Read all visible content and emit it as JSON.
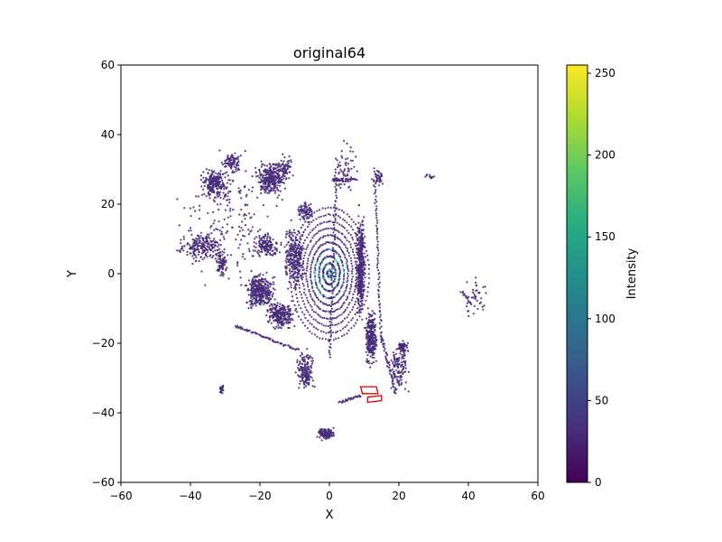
{
  "chart_data": {
    "type": "scatter",
    "title": "original64",
    "xlabel": "X",
    "ylabel": "Y",
    "xlim": [
      -60,
      60
    ],
    "ylim": [
      -60,
      60
    ],
    "xticks": [
      -60,
      -40,
      -20,
      0,
      20,
      40,
      60
    ],
    "yticks": [
      -60,
      -40,
      -20,
      0,
      20,
      40,
      60
    ],
    "grid": false,
    "colorbar": {
      "label": "Intensity",
      "colormap": "viridis",
      "range": [
        0,
        255
      ],
      "ticks": [
        0,
        50,
        100,
        150,
        200,
        250
      ]
    },
    "point_color": "#472c7a",
    "highlight_color": "#46d0c0",
    "box_color": "#e00000",
    "clusters": [
      {
        "name": "far-left-a",
        "cx": -33,
        "cy": 26,
        "rx": 5,
        "ry": 5,
        "n": 220
      },
      {
        "name": "far-left-b",
        "cx": -28,
        "cy": 32,
        "rx": 3,
        "ry": 4,
        "n": 80
      },
      {
        "name": "left-upper",
        "cx": -17,
        "cy": 27,
        "rx": 5,
        "ry": 6,
        "n": 260
      },
      {
        "name": "left-upper-2",
        "cx": -13,
        "cy": 30,
        "rx": 3,
        "ry": 5,
        "n": 80
      },
      {
        "name": "left-mid",
        "cx": -37,
        "cy": 8,
        "rx": 8,
        "ry": 5,
        "n": 200
      },
      {
        "name": "left-mid-2",
        "cx": -31,
        "cy": 3,
        "rx": 2,
        "ry": 4,
        "n": 70
      },
      {
        "name": "left-mid-3",
        "cx": -18,
        "cy": 8,
        "rx": 5,
        "ry": 4,
        "n": 150
      },
      {
        "name": "left-lower",
        "cx": -20,
        "cy": -5,
        "rx": 5,
        "ry": 6,
        "n": 350
      },
      {
        "name": "left-lower-2",
        "cx": -14,
        "cy": -12,
        "rx": 5,
        "ry": 5,
        "n": 240
      },
      {
        "name": "inner-left",
        "cx": -10,
        "cy": 5,
        "rx": 4,
        "ry": 12,
        "n": 260
      },
      {
        "name": "inner-left-2",
        "cx": -7,
        "cy": 18,
        "rx": 3,
        "ry": 4,
        "n": 80
      },
      {
        "name": "inner-lower",
        "cx": -7,
        "cy": -28,
        "rx": 3,
        "ry": 7,
        "n": 160
      },
      {
        "name": "bottom",
        "cx": -1,
        "cy": -46,
        "rx": 3,
        "ry": 2,
        "n": 120
      },
      {
        "name": "bottom-left",
        "cx": -31,
        "cy": -33,
        "rx": 1,
        "ry": 2,
        "n": 25
      },
      {
        "name": "road-right",
        "cx": 9,
        "cy": 2,
        "rx": 1.6,
        "ry": 18,
        "n": 420
      },
      {
        "name": "right-lower",
        "cx": 12,
        "cy": -18,
        "rx": 2,
        "ry": 10,
        "n": 260
      },
      {
        "name": "right-bottom",
        "cx": 20,
        "cy": -28,
        "rx": 4,
        "ry": 8,
        "n": 120
      },
      {
        "name": "right-mid",
        "cx": 21,
        "cy": -21,
        "rx": 2,
        "ry": 2,
        "n": 70
      },
      {
        "name": "upper-center",
        "cx": 4,
        "cy": 30,
        "rx": 5,
        "ry": 10,
        "n": 70
      },
      {
        "name": "upper-right",
        "cx": 14,
        "cy": 28,
        "rx": 2,
        "ry": 3,
        "n": 40
      },
      {
        "name": "far-right",
        "cx": 42,
        "cy": -7,
        "rx": 5,
        "ry": 8,
        "n": 40
      },
      {
        "name": "far-right-2",
        "cx": 29,
        "cy": 28,
        "rx": 2,
        "ry": 1,
        "n": 12
      },
      {
        "name": "scatter-left",
        "cx": -28,
        "cy": 15,
        "rx": 20,
        "ry": 25,
        "n": 200
      }
    ],
    "rings": {
      "radii": [
        1,
        3,
        5,
        7,
        9,
        11,
        13,
        15,
        17,
        19
      ],
      "xscale": 0.6,
      "points_per_ring": 90
    },
    "lines": [
      {
        "name": "diag-left",
        "from": [
          -27,
          -15
        ],
        "to": [
          -9,
          -22
        ],
        "n": 70
      },
      {
        "name": "road-left",
        "from": [
          2,
          27
        ],
        "to": [
          0,
          -24
        ],
        "n": 80
      },
      {
        "name": "road-right-edge",
        "from": [
          13,
          27
        ],
        "to": [
          15,
          -20
        ],
        "n": 70
      },
      {
        "name": "bottom-curve",
        "from": [
          3,
          -37
        ],
        "to": [
          9,
          -35
        ],
        "n": 30
      },
      {
        "name": "right-diag",
        "from": [
          15,
          -18
        ],
        "to": [
          19,
          -34
        ],
        "n": 45
      },
      {
        "name": "upper-bar",
        "from": [
          1,
          27
        ],
        "to": [
          8,
          27
        ],
        "n": 30
      },
      {
        "name": "right-fan",
        "from": [
          38,
          -5
        ],
        "to": [
          41,
          -9
        ],
        "n": 15
      }
    ],
    "boxes": [
      {
        "name": "box-1",
        "corners": [
          [
            9,
            -32.5
          ],
          [
            13.5,
            -32.5
          ],
          [
            14,
            -34.5
          ],
          [
            9.5,
            -34.5
          ]
        ]
      },
      {
        "name": "box-2",
        "corners": [
          [
            11,
            -35.5
          ],
          [
            15,
            -35
          ],
          [
            15,
            -36.5
          ],
          [
            11,
            -37
          ]
        ]
      }
    ]
  }
}
